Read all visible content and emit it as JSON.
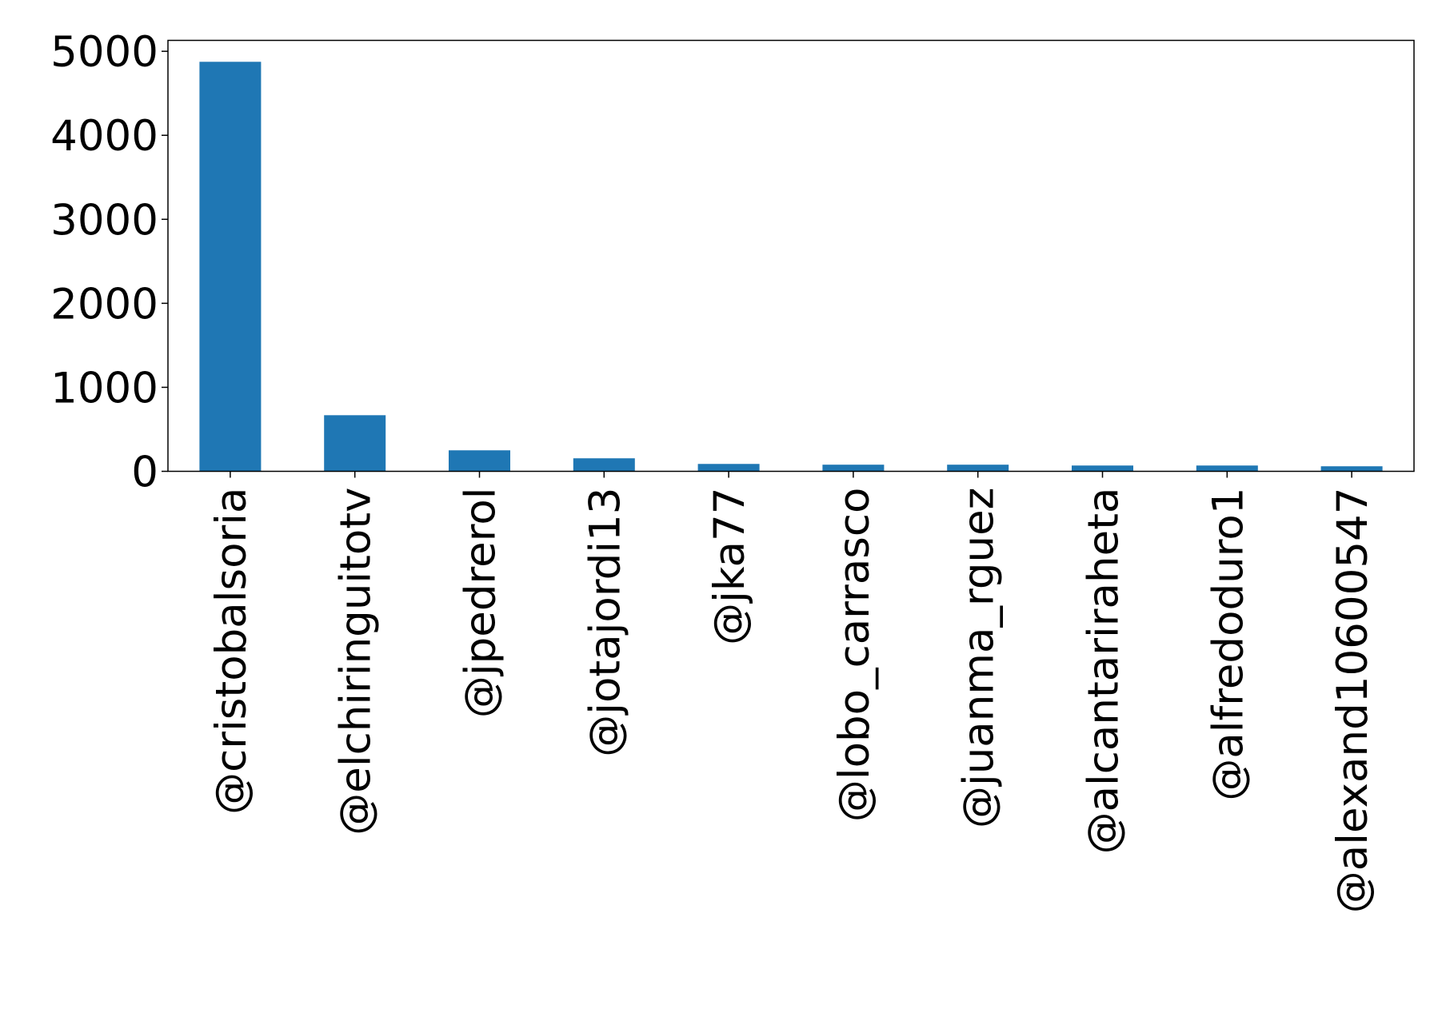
{
  "chart_data": {
    "type": "bar",
    "title": "",
    "xlabel": "",
    "ylabel": "",
    "categories": [
      "@cristobalsoria",
      "@elchiringuitotv",
      "@jpedrerol",
      "@jotajordi13",
      "@jka77",
      "@lobo_carrasco",
      "@juanma_rguez",
      "@alcantariraheta",
      "@alfredoduro1",
      "@alexand10600547"
    ],
    "values": [
      4875,
      668,
      250,
      155,
      88,
      79,
      79,
      69,
      69,
      60
    ],
    "ylim": [
      0,
      5130
    ],
    "yticks": [
      0,
      1000,
      2000,
      3000,
      4000,
      5000
    ],
    "ytick_labels": [
      "0",
      "1000",
      "2000",
      "3000",
      "4000",
      "5000"
    ],
    "grid": false,
    "legend": "none",
    "colors": {
      "bar": "#1f77b4",
      "axis": "#000000"
    }
  }
}
